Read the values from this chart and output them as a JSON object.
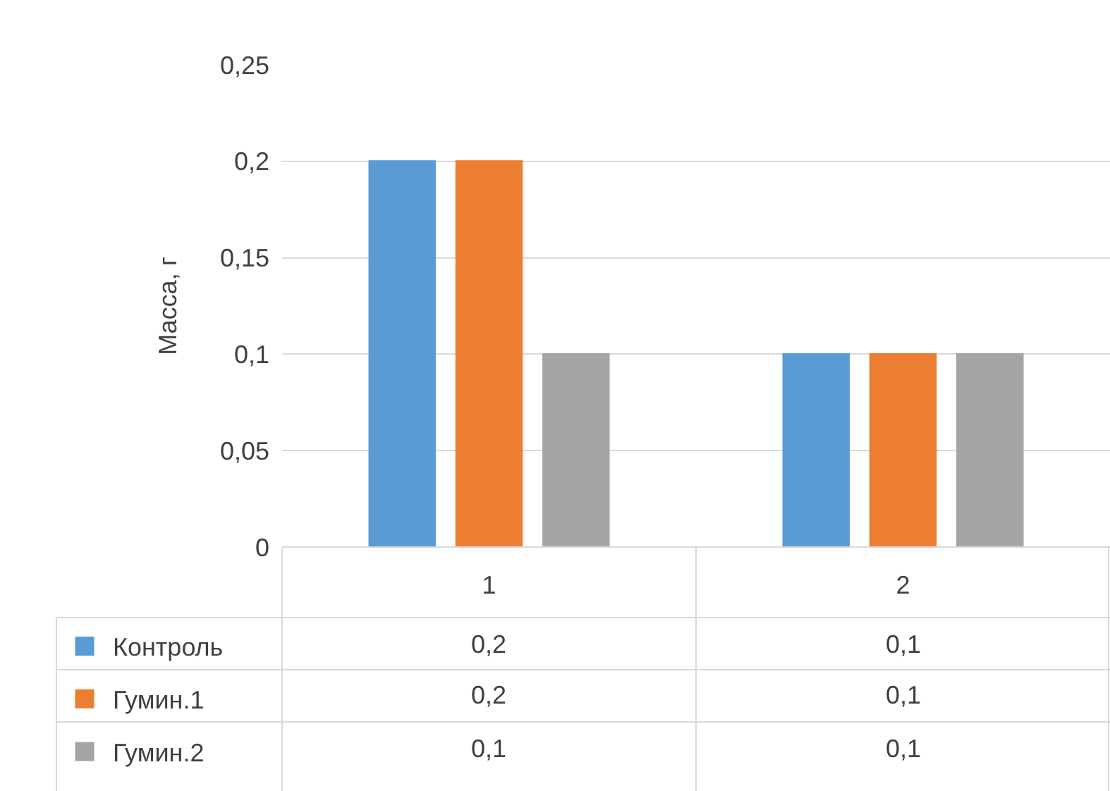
{
  "chart_data": {
    "type": "bar",
    "ylabel": "Масса, г",
    "categories": [
      "1",
      "2"
    ],
    "series": [
      {
        "name": "Контроль",
        "color": "#5b9bd5",
        "values": [
          0.2,
          0.1
        ],
        "value_labels": [
          "0,2",
          "0,1"
        ]
      },
      {
        "name": "Гумин.1",
        "color": "#ed7d31",
        "values": [
          0.2,
          0.1
        ],
        "value_labels": [
          "0,2",
          "0,1"
        ]
      },
      {
        "name": "Гумин.2",
        "color": "#a5a5a5",
        "values": [
          0.1,
          0.1
        ],
        "value_labels": [
          "0,1",
          "0,1"
        ]
      }
    ],
    "ylim": [
      0,
      0.25
    ],
    "yticks": [
      {
        "value": 0,
        "label": "0"
      },
      {
        "value": 0.05,
        "label": "0,05"
      },
      {
        "value": 0.1,
        "label": "0,1"
      },
      {
        "value": 0.15,
        "label": "0,15"
      },
      {
        "value": 0.2,
        "label": "0,2"
      },
      {
        "value": 0.25,
        "label": "0,25"
      }
    ],
    "grid": "y",
    "legend": "bottom left"
  }
}
